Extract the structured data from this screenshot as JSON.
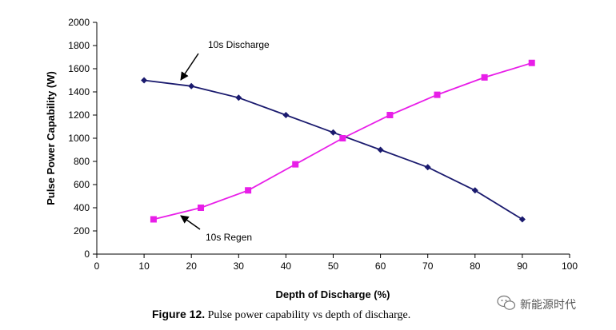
{
  "chart_data": {
    "type": "line",
    "xlabel": "Depth of Discharge (%)",
    "ylabel": "Pulse Power Capability (W)",
    "xlim": [
      0,
      100
    ],
    "ylim": [
      0,
      2000
    ],
    "x_ticks": [
      0,
      10,
      20,
      30,
      40,
      50,
      60,
      70,
      80,
      90,
      100
    ],
    "y_ticks": [
      0,
      200,
      400,
      600,
      800,
      1000,
      1200,
      1400,
      1600,
      1800,
      2000
    ],
    "grid": false,
    "series": [
      {
        "name": "10s Discharge",
        "color": "#1a1a6e",
        "marker": "diamond",
        "points": [
          {
            "x": 10,
            "y": 1500
          },
          {
            "x": 20,
            "y": 1450
          },
          {
            "x": 30,
            "y": 1350
          },
          {
            "x": 40,
            "y": 1200
          },
          {
            "x": 50,
            "y": 1050
          },
          {
            "x": 60,
            "y": 900
          },
          {
            "x": 70,
            "y": 750
          },
          {
            "x": 80,
            "y": 550
          },
          {
            "x": 90,
            "y": 300
          }
        ]
      },
      {
        "name": "10s Regen",
        "color": "#e81ee8",
        "marker": "square",
        "points": [
          {
            "x": 12,
            "y": 300
          },
          {
            "x": 22,
            "y": 400
          },
          {
            "x": 32,
            "y": 550
          },
          {
            "x": 42,
            "y": 775
          },
          {
            "x": 52,
            "y": 1000
          },
          {
            "x": 62,
            "y": 1200
          },
          {
            "x": 72,
            "y": 1375
          },
          {
            "x": 82,
            "y": 1525
          },
          {
            "x": 92,
            "y": 1650
          }
        ]
      }
    ],
    "annotations": [
      {
        "text": "10s Discharge",
        "series": "10s Discharge"
      },
      {
        "text": "10s Regen",
        "series": "10s Regen"
      }
    ]
  },
  "caption": {
    "bold": "Figure 12.",
    "rest": " Pulse power capability vs depth of discharge."
  },
  "watermark": {
    "text": "新能源时代",
    "icon": "wechat-icon"
  }
}
